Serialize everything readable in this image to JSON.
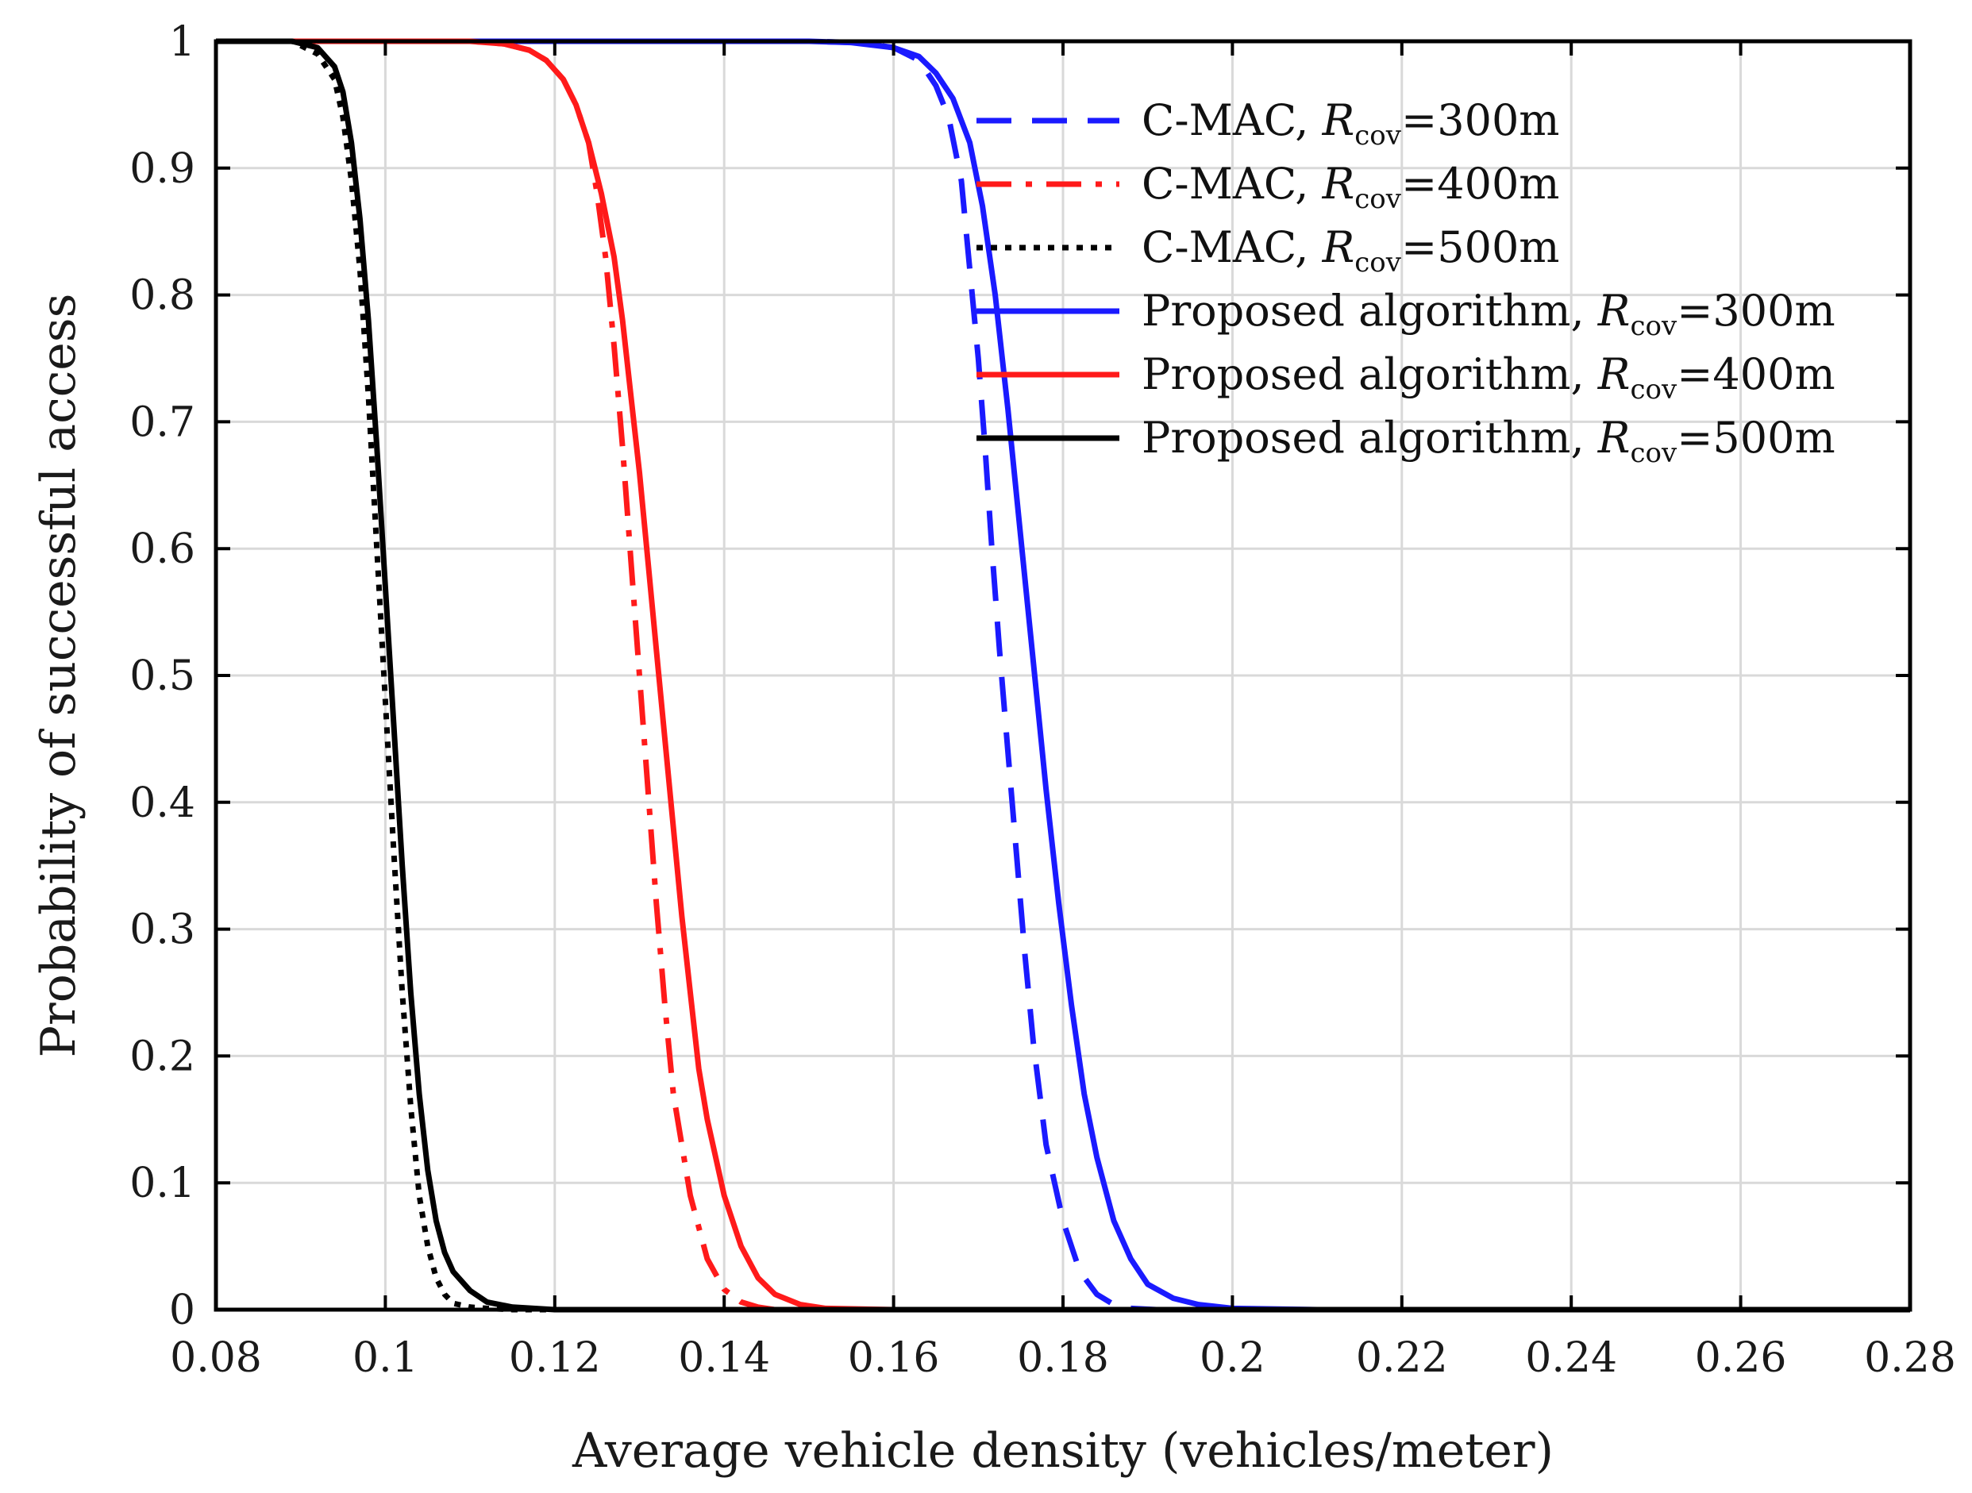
{
  "chart_data": {
    "type": "line",
    "title": "",
    "xlabel": "Average vehicle density (vehicles/meter)",
    "ylabel": "Probability of successful access",
    "xlim": [
      0.08,
      0.28
    ],
    "ylim": [
      0,
      1
    ],
    "xticks": [
      "0.08",
      "0.1",
      "0.12",
      "0.14",
      "0.16",
      "0.18",
      "0.2",
      "0.22",
      "0.24",
      "0.26",
      "0.28"
    ],
    "yticks": [
      "0",
      "0.1",
      "0.2",
      "0.3",
      "0.4",
      "0.5",
      "0.6",
      "0.7",
      "0.8",
      "0.9",
      "1"
    ],
    "grid": true,
    "legend_position": "top-right",
    "series": [
      {
        "name_prefix": "C-MAC, ",
        "name_var": "R",
        "name_sub": "cov",
        "name_suffix": "=300m",
        "color": "#1a1aff",
        "style": "dashed",
        "x": [
          0.08,
          0.15,
          0.156,
          0.16,
          0.163,
          0.165,
          0.1665,
          0.168,
          0.169,
          0.17,
          0.1708,
          0.1716,
          0.1725,
          0.1735,
          0.1745,
          0.1755,
          0.1765,
          0.178,
          0.18,
          0.182,
          0.184,
          0.186,
          0.188,
          0.191,
          0.28
        ],
        "y": [
          1.0,
          1.0,
          0.999,
          0.995,
          0.985,
          0.965,
          0.94,
          0.89,
          0.82,
          0.75,
          0.68,
          0.6,
          0.52,
          0.44,
          0.36,
          0.28,
          0.21,
          0.13,
          0.07,
          0.03,
          0.012,
          0.004,
          0.001,
          0.0,
          0.0
        ]
      },
      {
        "name_prefix": "C-MAC, ",
        "name_var": "R",
        "name_sub": "cov",
        "name_suffix": "=400m",
        "color": "#ff1a1a",
        "style": "dashdot",
        "x": [
          0.08,
          0.11,
          0.114,
          0.117,
          0.119,
          0.121,
          0.1225,
          0.124,
          0.125,
          0.126,
          0.127,
          0.128,
          0.129,
          0.13,
          0.131,
          0.132,
          0.133,
          0.134,
          0.136,
          0.138,
          0.14,
          0.142,
          0.144,
          0.146,
          0.28
        ],
        "y": [
          1.0,
          1.0,
          0.998,
          0.993,
          0.985,
          0.97,
          0.95,
          0.92,
          0.88,
          0.83,
          0.76,
          0.68,
          0.59,
          0.5,
          0.41,
          0.32,
          0.24,
          0.17,
          0.09,
          0.04,
          0.016,
          0.006,
          0.002,
          0.0,
          0.0
        ]
      },
      {
        "name_prefix": "C-MAC, ",
        "name_var": "R",
        "name_sub": "cov",
        "name_suffix": "=500m",
        "color": "#000000",
        "style": "dotted",
        "x": [
          0.08,
          0.089,
          0.092,
          0.094,
          0.095,
          0.096,
          0.097,
          0.098,
          0.099,
          0.1,
          0.101,
          0.102,
          0.103,
          0.104,
          0.105,
          0.106,
          0.107,
          0.108,
          0.11,
          0.112,
          0.115,
          0.28
        ],
        "y": [
          1.0,
          1.0,
          0.99,
          0.97,
          0.94,
          0.89,
          0.82,
          0.72,
          0.6,
          0.48,
          0.36,
          0.25,
          0.16,
          0.09,
          0.05,
          0.025,
          0.012,
          0.005,
          0.002,
          0.001,
          0.0,
          0.0
        ]
      },
      {
        "name_prefix": "Proposed algorithm, ",
        "name_var": "R",
        "name_sub": "cov",
        "name_suffix": "=300m",
        "color": "#1a1aff",
        "style": "solid",
        "x": [
          0.08,
          0.15,
          0.155,
          0.16,
          0.163,
          0.165,
          0.167,
          0.169,
          0.1705,
          0.172,
          0.1735,
          0.175,
          0.1765,
          0.178,
          0.1795,
          0.181,
          0.1825,
          0.184,
          0.186,
          0.188,
          0.19,
          0.193,
          0.196,
          0.2,
          0.21,
          0.28
        ],
        "y": [
          1.0,
          1.0,
          0.999,
          0.995,
          0.988,
          0.975,
          0.955,
          0.92,
          0.87,
          0.8,
          0.71,
          0.61,
          0.51,
          0.41,
          0.32,
          0.24,
          0.17,
          0.12,
          0.07,
          0.04,
          0.02,
          0.009,
          0.004,
          0.001,
          0.0,
          0.0
        ]
      },
      {
        "name_prefix": "Proposed algorithm, ",
        "name_var": "R",
        "name_sub": "cov",
        "name_suffix": "=400m",
        "color": "#ff1a1a",
        "style": "solid",
        "x": [
          0.08,
          0.11,
          0.114,
          0.117,
          0.119,
          0.121,
          0.1225,
          0.124,
          0.1255,
          0.127,
          0.128,
          0.129,
          0.13,
          0.131,
          0.132,
          0.133,
          0.134,
          0.135,
          0.136,
          0.137,
          0.138,
          0.14,
          0.142,
          0.144,
          0.146,
          0.149,
          0.152,
          0.16,
          0.28
        ],
        "y": [
          1.0,
          1.0,
          0.998,
          0.993,
          0.985,
          0.97,
          0.95,
          0.92,
          0.88,
          0.83,
          0.78,
          0.72,
          0.66,
          0.59,
          0.52,
          0.45,
          0.38,
          0.31,
          0.25,
          0.19,
          0.15,
          0.09,
          0.05,
          0.025,
          0.012,
          0.004,
          0.001,
          0.0,
          0.0
        ]
      },
      {
        "name_prefix": "Proposed algorithm, ",
        "name_var": "R",
        "name_sub": "cov",
        "name_suffix": "=500m",
        "color": "#000000",
        "style": "solid",
        "x": [
          0.08,
          0.089,
          0.092,
          0.094,
          0.095,
          0.096,
          0.097,
          0.098,
          0.099,
          0.1,
          0.101,
          0.102,
          0.103,
          0.104,
          0.105,
          0.106,
          0.107,
          0.108,
          0.11,
          0.112,
          0.115,
          0.12,
          0.28
        ],
        "y": [
          1.0,
          1.0,
          0.995,
          0.98,
          0.96,
          0.92,
          0.86,
          0.78,
          0.68,
          0.57,
          0.46,
          0.35,
          0.25,
          0.17,
          0.11,
          0.07,
          0.045,
          0.03,
          0.015,
          0.006,
          0.002,
          0.0,
          0.0
        ]
      }
    ]
  },
  "colors": {
    "blue": "#1a1aff",
    "red": "#ff1a1a",
    "black": "#000000",
    "grid": "#d9d9d9",
    "axes": "#000000"
  }
}
